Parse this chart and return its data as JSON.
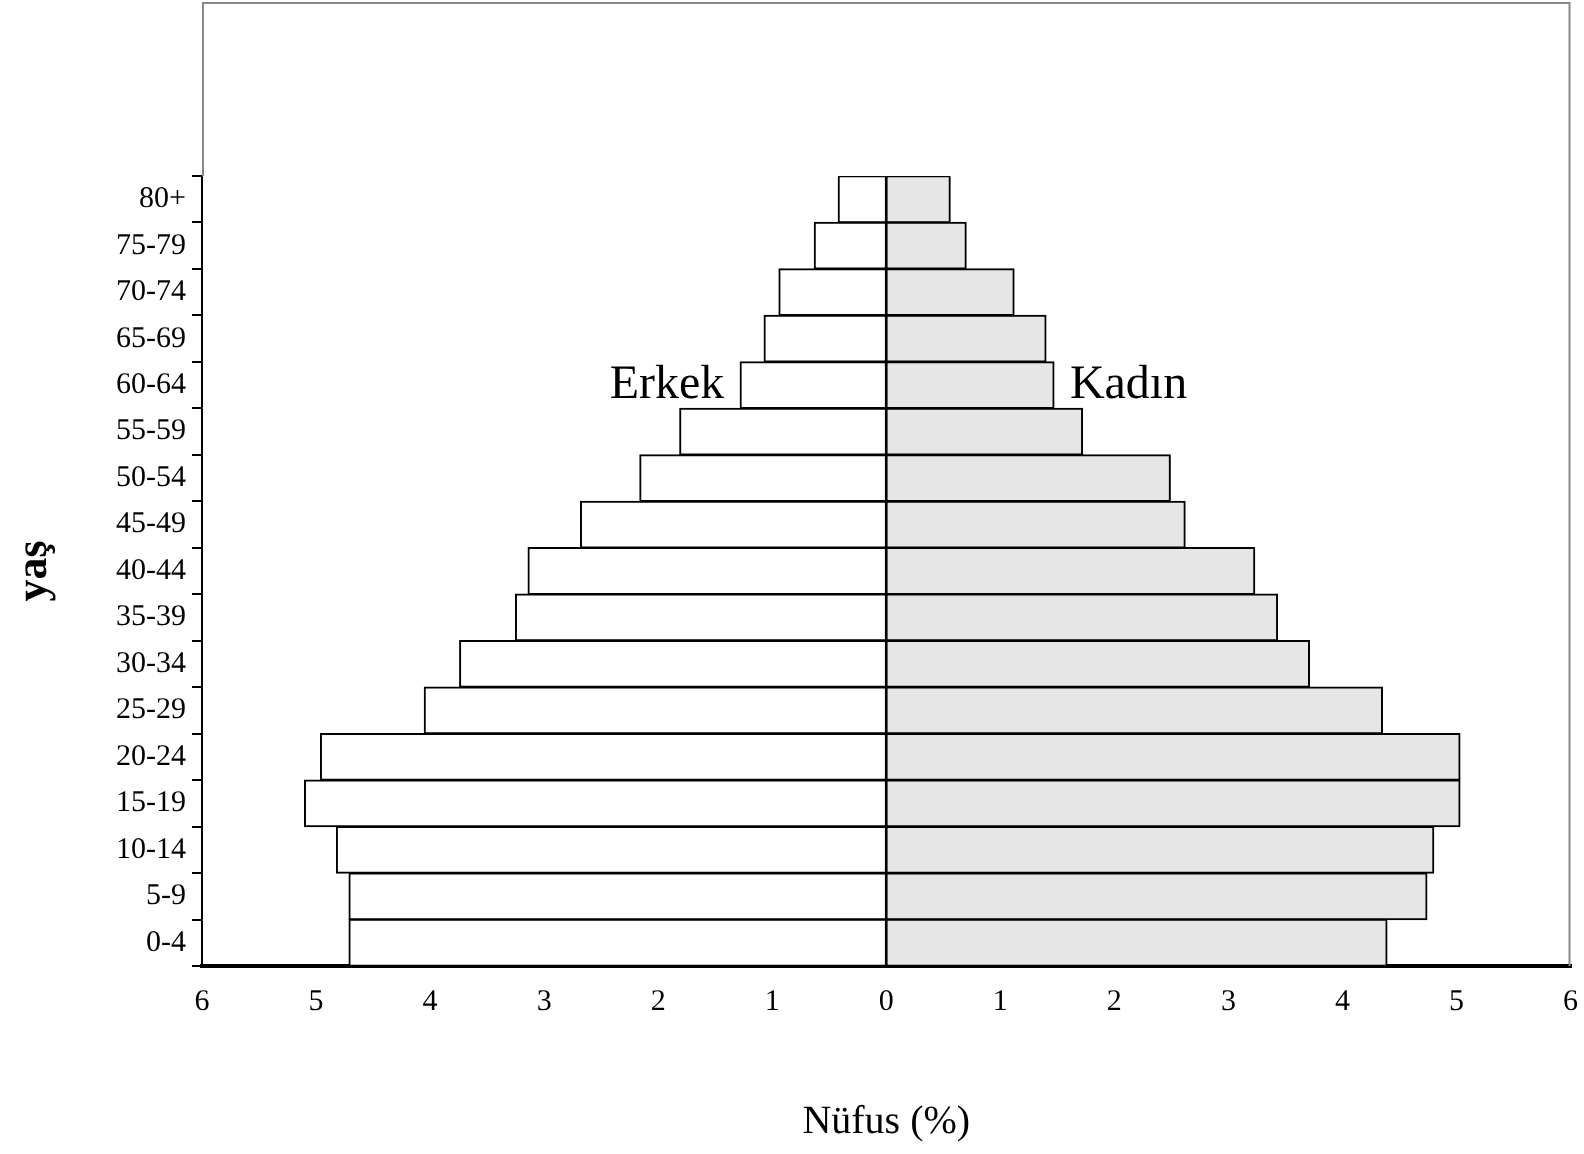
{
  "chart_data": {
    "type": "bar",
    "orientation": "horizontal",
    "stacked": true,
    "xlabel": "Nüfus (%)",
    "ylabel": "yaş",
    "categories": [
      "80+",
      "75-79",
      "70-74",
      "65-69",
      "60-64",
      "55-59",
      "50-54",
      "45-49",
      "40-44",
      "35-39",
      "30-34",
      "25-29",
      "20-24",
      "15-19",
      "10-14",
      "5-9",
      "0-4"
    ],
    "series": [
      {
        "name": "Erkek",
        "color": "#ffffff",
        "values": [
          -0.42,
          -0.63,
          -0.94,
          -1.07,
          -1.28,
          -1.81,
          -2.16,
          -2.68,
          -3.14,
          -3.25,
          -3.74,
          -4.05,
          -4.96,
          -5.1,
          -4.82,
          -4.71,
          -4.71
        ]
      },
      {
        "name": "Kadın",
        "color": "#e6e6e6",
        "values": [
          0.56,
          0.7,
          1.12,
          1.4,
          1.47,
          1.72,
          2.49,
          2.62,
          3.23,
          3.43,
          3.71,
          4.35,
          5.03,
          5.03,
          4.8,
          4.74,
          4.39
        ]
      }
    ],
    "xlim": [
      -6,
      6
    ],
    "xticks": [
      {
        "value": -6,
        "label": "6"
      },
      {
        "value": -5,
        "label": "5"
      },
      {
        "value": -4,
        "label": "4"
      },
      {
        "value": -3,
        "label": "3"
      },
      {
        "value": -2,
        "label": "2"
      },
      {
        "value": -1,
        "label": "1"
      },
      0,
      1,
      2,
      3,
      4,
      5,
      6
    ],
    "grid": false,
    "legend": false
  }
}
